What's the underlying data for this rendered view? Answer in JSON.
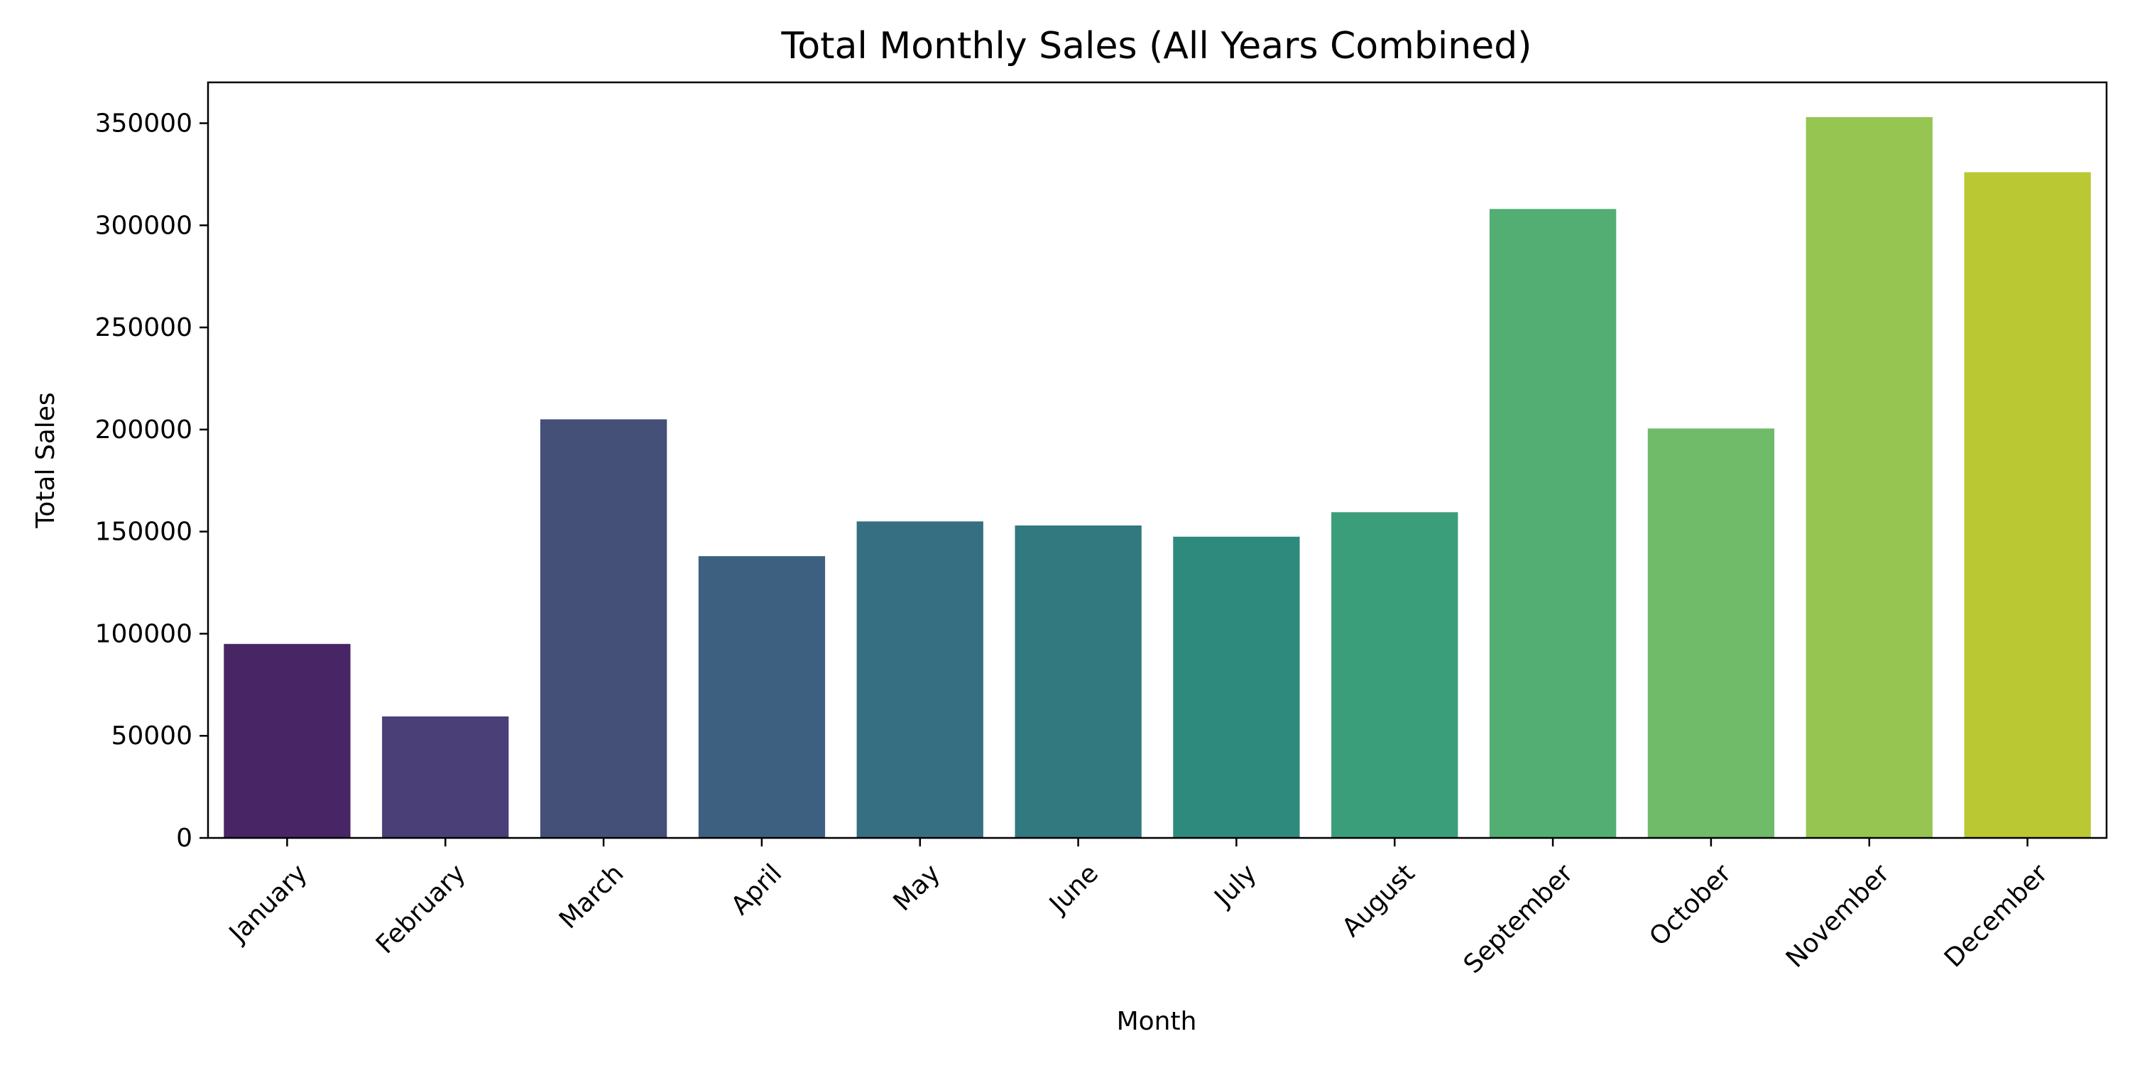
{
  "chart_data": {
    "type": "bar",
    "title": "Total Monthly Sales (All Years Combined)",
    "xlabel": "Month",
    "ylabel": "Total Sales",
    "categories": [
      "January",
      "February",
      "March",
      "April",
      "May",
      "June",
      "July",
      "August",
      "September",
      "October",
      "November",
      "December"
    ],
    "values": [
      95000,
      59500,
      205000,
      138000,
      155000,
      153000,
      147500,
      159500,
      308000,
      200500,
      353000,
      326000
    ],
    "ylim": [
      0,
      370000
    ],
    "yticks": [
      0,
      50000,
      100000,
      150000,
      200000,
      250000,
      300000,
      350000
    ],
    "colors": [
      "#482565",
      "#4a3f77",
      "#445078",
      "#3d6081",
      "#376f82",
      "#31797f",
      "#2e8a7d",
      "#3a9e7a",
      "#52ae73",
      "#6fbb6a",
      "#96c552",
      "#bac834"
    ],
    "grid": false,
    "legend": "none"
  }
}
